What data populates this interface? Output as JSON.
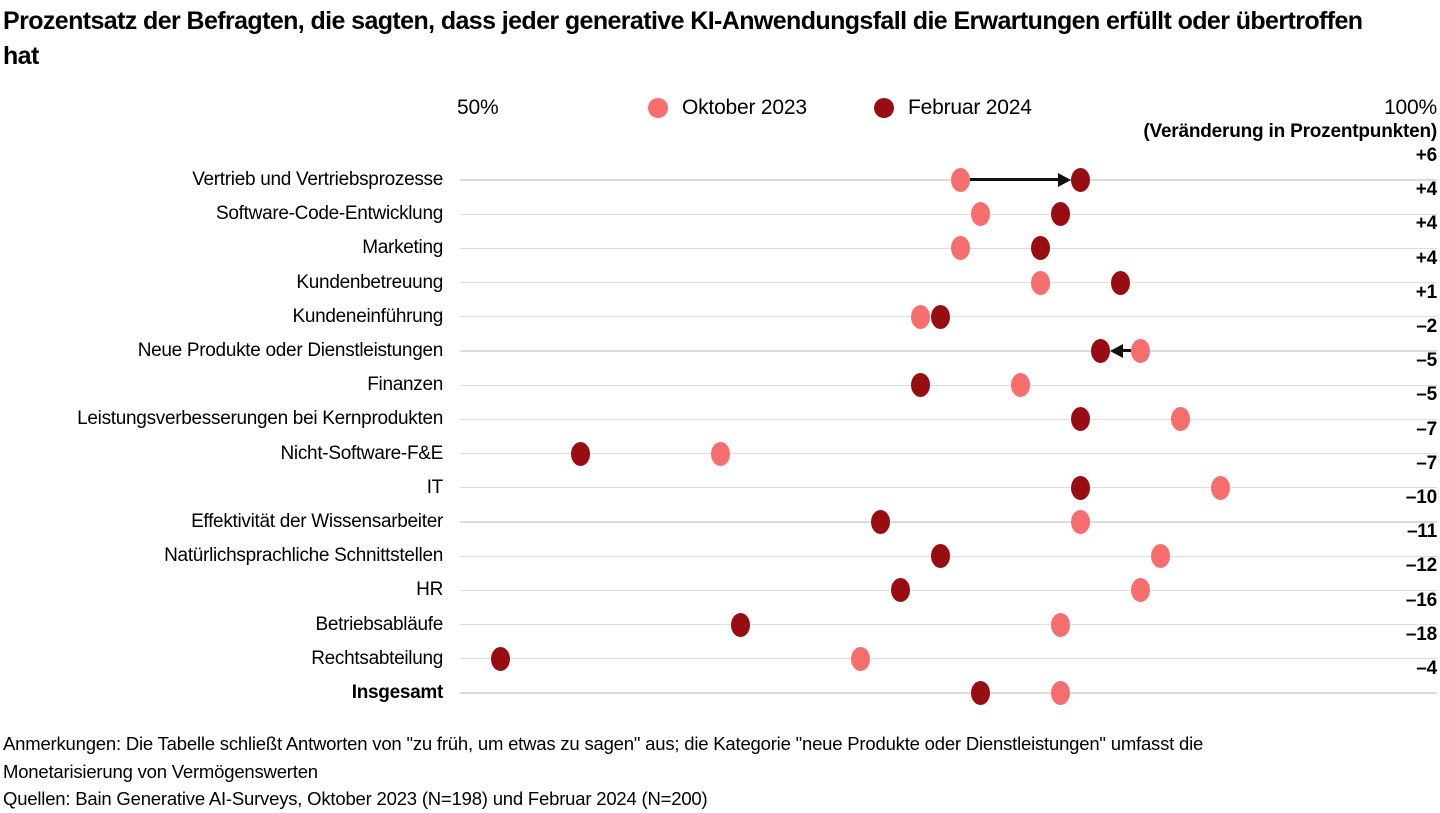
{
  "title": "Prozentsatz der Befragten, die sagten, dass jeder generative KI-Anwendungsfall die Erwartungen erfüllt oder übertroffen hat",
  "axis": {
    "min_label": "50%",
    "max_label": "100%",
    "change_header": "(Veränderung in Prozentpunkten)"
  },
  "legend": [
    {
      "label": "Oktober 2023",
      "color": "#f76e6f"
    },
    {
      "label": "Februar 2024",
      "color": "#970d12"
    }
  ],
  "colors": {
    "okt2023": "#f76e6f",
    "feb2024": "#970d12",
    "gridline": "#dcdcdc",
    "arrow": "#111111",
    "text": "#000000"
  },
  "chart_data": {
    "type": "scatter",
    "subtype": "dumbbell-dot-plot",
    "x_range": [
      50,
      100
    ],
    "x_unit": "%",
    "grid": "horizontal-row-lines",
    "legend_position": "top",
    "series_names": [
      "Oktober 2023",
      "Februar 2024"
    ],
    "rows": [
      {
        "label": "Vertrieb und Vertriebsprozesse",
        "okt2023": 76,
        "feb2024": 82,
        "change": "+6",
        "arrow": "right"
      },
      {
        "label": "Software-Code-Entwicklung",
        "okt2023": 77,
        "feb2024": 81,
        "change": "+4"
      },
      {
        "label": "Marketing",
        "okt2023": 76,
        "feb2024": 80,
        "change": "+4"
      },
      {
        "label": "Kundenbetreuung",
        "okt2023": 80,
        "feb2024": 84,
        "change": "+4"
      },
      {
        "label": "Kundeneinführung",
        "okt2023": 74,
        "feb2024": 75,
        "change": "+1"
      },
      {
        "label": "Neue Produkte oder Dienstleistungen",
        "okt2023": 85,
        "feb2024": 83,
        "change": "–2",
        "arrow": "left"
      },
      {
        "label": "Finanzen",
        "okt2023": 79,
        "feb2024": 74,
        "change": "–5"
      },
      {
        "label": "Leistungsverbesserungen bei Kernprodukten",
        "okt2023": 87,
        "feb2024": 82,
        "change": "–5"
      },
      {
        "label": "Nicht-Software-F&E",
        "okt2023": 64,
        "feb2024": 57,
        "change": "–7"
      },
      {
        "label": "IT",
        "okt2023": 89,
        "feb2024": 82,
        "change": "–7"
      },
      {
        "label": "Effektivität der Wissensarbeiter",
        "okt2023": 82,
        "feb2024": 72,
        "change": "–10"
      },
      {
        "label": "Natürlichsprachliche Schnittstellen",
        "okt2023": 86,
        "feb2024": 75,
        "change": "–11"
      },
      {
        "label": "HR",
        "okt2023": 85,
        "feb2024": 73,
        "change": "–12"
      },
      {
        "label": "Betriebsabläufe",
        "okt2023": 81,
        "feb2024": 65,
        "change": "–16"
      },
      {
        "label": "Rechtsabteilung",
        "okt2023": 71,
        "feb2024": 53,
        "change": "–18"
      },
      {
        "label": "Insgesamt",
        "okt2023": 81,
        "feb2024": 77,
        "change": "–4",
        "bold": true
      }
    ]
  },
  "footer": {
    "notes": "Anmerkungen: Die Tabelle schließt Antworten von \"zu früh, um etwas zu sagen\" aus; die Kategorie \"neue Produkte oder Dienstleistungen\" umfasst die Monetarisierung von Vermögenswerten",
    "sources": "Quellen: Bain Generative AI-Surveys, Oktober 2023 (N=198) und Februar 2024 (N=200)"
  }
}
